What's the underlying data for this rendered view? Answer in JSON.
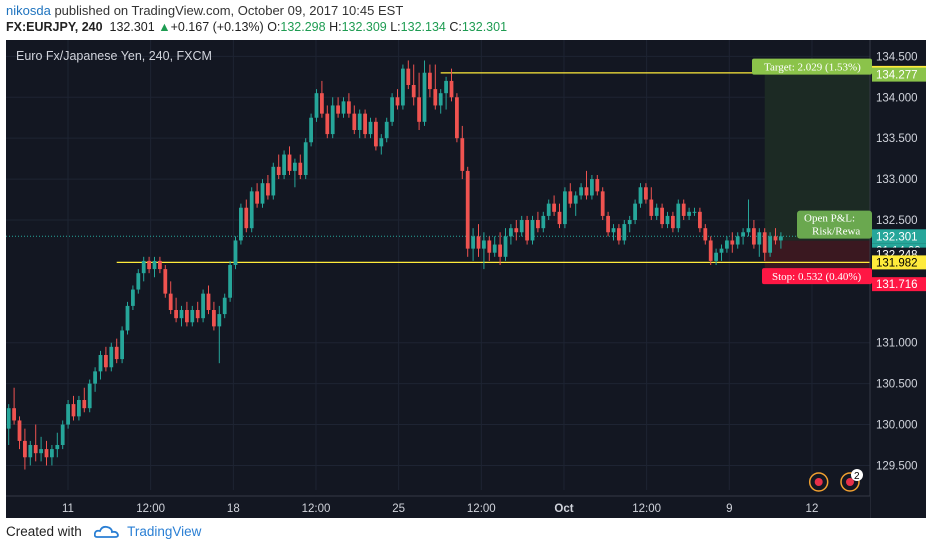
{
  "header": {
    "username": "nikosda",
    "published_text": "published on TradingView.com, October 09, 2017 10:45 EST"
  },
  "quote": {
    "symbol": "FX:EURJPY, 240",
    "last": "132.301",
    "change": "+0.167 (+0.13%)",
    "open_label": "O:",
    "open": "132.298",
    "high_label": "H:",
    "high": "132.309",
    "low_label": "L:",
    "low": "132.134",
    "close_label": "C:",
    "close": "132.301"
  },
  "footer": {
    "created_with": "Created with",
    "brand": "TradingView"
  },
  "colors": {
    "bg": "#131722",
    "up": "#26a69a",
    "down": "#ef5350",
    "line": "#ffeb3b",
    "target": "#8bc34a",
    "stop": "#ff1744"
  },
  "chart_data": {
    "type": "candlestick",
    "title": "Euro Fx/Japanese Yen, 240, FXCM",
    "ylim": [
      129.2,
      134.7
    ],
    "y_ticks": [
      "134.500",
      "134.000",
      "133.500",
      "133.000",
      "132.500",
      "131.000",
      "130.500",
      "130.000",
      "129.500"
    ],
    "x_ticks": [
      "11",
      "12:00",
      "18",
      "12:00",
      "25",
      "12:00",
      "Oct",
      "12:00",
      "9",
      "12"
    ],
    "n_bars": 160,
    "candles": [
      {
        "o": 129.95,
        "h": 130.25,
        "l": 129.75,
        "c": 130.2
      },
      {
        "o": 130.2,
        "h": 130.45,
        "l": 130.0,
        "c": 130.05
      },
      {
        "o": 130.05,
        "h": 130.1,
        "l": 129.7,
        "c": 129.8
      },
      {
        "o": 129.8,
        "h": 129.95,
        "l": 129.45,
        "c": 129.6
      },
      {
        "o": 129.6,
        "h": 129.8,
        "l": 129.5,
        "c": 129.75
      },
      {
        "o": 129.75,
        "h": 130.0,
        "l": 129.55,
        "c": 129.65
      },
      {
        "o": 129.65,
        "h": 129.85,
        "l": 129.55,
        "c": 129.7
      },
      {
        "o": 129.7,
        "h": 129.8,
        "l": 129.5,
        "c": 129.6
      },
      {
        "o": 129.6,
        "h": 129.75,
        "l": 129.5,
        "c": 129.7
      },
      {
        "o": 129.7,
        "h": 129.9,
        "l": 129.6,
        "c": 129.75
      },
      {
        "o": 129.75,
        "h": 130.05,
        "l": 129.7,
        "c": 130.0
      },
      {
        "o": 130.0,
        "h": 130.3,
        "l": 129.95,
        "c": 130.25
      },
      {
        "o": 130.25,
        "h": 130.35,
        "l": 130.05,
        "c": 130.1
      },
      {
        "o": 130.1,
        "h": 130.35,
        "l": 130.05,
        "c": 130.3
      },
      {
        "o": 130.3,
        "h": 130.45,
        "l": 130.15,
        "c": 130.2
      },
      {
        "o": 130.2,
        "h": 130.55,
        "l": 130.15,
        "c": 130.5
      },
      {
        "o": 130.5,
        "h": 130.7,
        "l": 130.4,
        "c": 130.65
      },
      {
        "o": 130.65,
        "h": 130.9,
        "l": 130.55,
        "c": 130.85
      },
      {
        "o": 130.85,
        "h": 130.95,
        "l": 130.65,
        "c": 130.7
      },
      {
        "o": 130.7,
        "h": 131.0,
        "l": 130.65,
        "c": 130.95
      },
      {
        "o": 130.95,
        "h": 131.05,
        "l": 130.75,
        "c": 130.8
      },
      {
        "o": 130.8,
        "h": 131.2,
        "l": 130.75,
        "c": 131.15
      },
      {
        "o": 131.15,
        "h": 131.5,
        "l": 131.1,
        "c": 131.45
      },
      {
        "o": 131.45,
        "h": 131.7,
        "l": 131.4,
        "c": 131.65
      },
      {
        "o": 131.65,
        "h": 131.9,
        "l": 131.6,
        "c": 131.85
      },
      {
        "o": 131.85,
        "h": 132.05,
        "l": 131.75,
        "c": 132.0
      },
      {
        "o": 132.0,
        "h": 132.05,
        "l": 131.85,
        "c": 131.9
      },
      {
        "o": 131.9,
        "h": 132.05,
        "l": 131.8,
        "c": 132.0
      },
      {
        "o": 132.0,
        "h": 132.05,
        "l": 131.85,
        "c": 131.9
      },
      {
        "o": 131.9,
        "h": 131.95,
        "l": 131.55,
        "c": 131.6
      },
      {
        "o": 131.6,
        "h": 131.75,
        "l": 131.35,
        "c": 131.4
      },
      {
        "o": 131.4,
        "h": 131.55,
        "l": 131.25,
        "c": 131.3
      },
      {
        "o": 131.3,
        "h": 131.45,
        "l": 131.2,
        "c": 131.4
      },
      {
        "o": 131.4,
        "h": 131.5,
        "l": 131.2,
        "c": 131.25
      },
      {
        "o": 131.25,
        "h": 131.45,
        "l": 131.2,
        "c": 131.4
      },
      {
        "o": 131.4,
        "h": 131.5,
        "l": 131.25,
        "c": 131.3
      },
      {
        "o": 131.3,
        "h": 131.65,
        "l": 131.25,
        "c": 131.6
      },
      {
        "o": 131.6,
        "h": 131.7,
        "l": 131.35,
        "c": 131.4
      },
      {
        "o": 131.4,
        "h": 131.5,
        "l": 131.15,
        "c": 131.2
      },
      {
        "o": 131.2,
        "h": 131.45,
        "l": 130.75,
        "c": 131.35
      },
      {
        "o": 131.35,
        "h": 131.6,
        "l": 131.3,
        "c": 131.55
      },
      {
        "o": 131.55,
        "h": 132.0,
        "l": 131.5,
        "c": 131.95
      },
      {
        "o": 131.95,
        "h": 132.3,
        "l": 131.9,
        "c": 132.25
      },
      {
        "o": 132.25,
        "h": 132.7,
        "l": 132.2,
        "c": 132.65
      },
      {
        "o": 132.65,
        "h": 132.75,
        "l": 132.35,
        "c": 132.4
      },
      {
        "o": 132.4,
        "h": 132.9,
        "l": 132.35,
        "c": 132.85
      },
      {
        "o": 132.85,
        "h": 132.95,
        "l": 132.65,
        "c": 132.7
      },
      {
        "o": 132.7,
        "h": 133.0,
        "l": 132.65,
        "c": 132.95
      },
      {
        "o": 132.95,
        "h": 133.05,
        "l": 132.75,
        "c": 132.8
      },
      {
        "o": 132.8,
        "h": 133.2,
        "l": 132.75,
        "c": 133.15
      },
      {
        "o": 133.15,
        "h": 133.3,
        "l": 133.0,
        "c": 133.05
      },
      {
        "o": 133.05,
        "h": 133.35,
        "l": 133.0,
        "c": 133.3
      },
      {
        "o": 133.3,
        "h": 133.4,
        "l": 133.05,
        "c": 133.1
      },
      {
        "o": 133.1,
        "h": 133.25,
        "l": 132.9,
        "c": 133.2
      },
      {
        "o": 133.2,
        "h": 133.3,
        "l": 133.0,
        "c": 133.05
      },
      {
        "o": 133.05,
        "h": 133.5,
        "l": 133.0,
        "c": 133.45
      },
      {
        "o": 133.45,
        "h": 133.8,
        "l": 133.4,
        "c": 133.75
      },
      {
        "o": 133.75,
        "h": 134.1,
        "l": 133.7,
        "c": 134.05
      },
      {
        "o": 134.05,
        "h": 134.2,
        "l": 133.75,
        "c": 133.8
      },
      {
        "o": 133.8,
        "h": 133.9,
        "l": 133.5,
        "c": 133.55
      },
      {
        "o": 133.55,
        "h": 134.0,
        "l": 133.5,
        "c": 133.9
      },
      {
        "o": 133.9,
        "h": 134.0,
        "l": 133.75,
        "c": 133.8
      },
      {
        "o": 133.8,
        "h": 134.0,
        "l": 133.75,
        "c": 133.95
      },
      {
        "o": 133.95,
        "h": 134.05,
        "l": 133.75,
        "c": 133.8
      },
      {
        "o": 133.8,
        "h": 133.9,
        "l": 133.55,
        "c": 133.6
      },
      {
        "o": 133.6,
        "h": 133.85,
        "l": 133.5,
        "c": 133.8
      },
      {
        "o": 133.8,
        "h": 133.85,
        "l": 133.5,
        "c": 133.55
      },
      {
        "o": 133.55,
        "h": 133.75,
        "l": 133.5,
        "c": 133.7
      },
      {
        "o": 133.7,
        "h": 133.75,
        "l": 133.35,
        "c": 133.4
      },
      {
        "o": 133.4,
        "h": 133.55,
        "l": 133.3,
        "c": 133.5
      },
      {
        "o": 133.5,
        "h": 133.75,
        "l": 133.45,
        "c": 133.7
      },
      {
        "o": 133.7,
        "h": 134.05,
        "l": 133.65,
        "c": 134.0
      },
      {
        "o": 134.0,
        "h": 134.1,
        "l": 133.85,
        "c": 133.9
      },
      {
        "o": 133.9,
        "h": 134.4,
        "l": 133.85,
        "c": 134.35
      },
      {
        "o": 134.35,
        "h": 134.45,
        "l": 134.1,
        "c": 134.15
      },
      {
        "o": 134.15,
        "h": 134.4,
        "l": 133.9,
        "c": 134.0
      },
      {
        "o": 134.0,
        "h": 134.3,
        "l": 133.6,
        "c": 133.7
      },
      {
        "o": 133.7,
        "h": 134.45,
        "l": 133.65,
        "c": 134.3
      },
      {
        "o": 134.3,
        "h": 134.4,
        "l": 134.0,
        "c": 134.1
      },
      {
        "o": 134.1,
        "h": 134.4,
        "l": 133.85,
        "c": 133.9
      },
      {
        "o": 133.9,
        "h": 134.1,
        "l": 133.8,
        "c": 134.05
      },
      {
        "o": 134.05,
        "h": 134.25,
        "l": 133.85,
        "c": 134.2
      },
      {
        "o": 134.2,
        "h": 134.35,
        "l": 133.95,
        "c": 134.0
      },
      {
        "o": 134.0,
        "h": 134.05,
        "l": 133.45,
        "c": 133.5
      },
      {
        "o": 133.5,
        "h": 133.65,
        "l": 133.0,
        "c": 133.1
      },
      {
        "o": 133.1,
        "h": 133.15,
        "l": 132.05,
        "c": 132.15
      },
      {
        "o": 132.15,
        "h": 132.4,
        "l": 132.0,
        "c": 132.3
      },
      {
        "o": 132.3,
        "h": 132.45,
        "l": 132.05,
        "c": 132.15
      },
      {
        "o": 132.15,
        "h": 132.35,
        "l": 131.9,
        "c": 132.25
      },
      {
        "o": 132.25,
        "h": 132.3,
        "l": 132.0,
        "c": 132.1
      },
      {
        "o": 132.1,
        "h": 132.3,
        "l": 132.05,
        "c": 132.2
      },
      {
        "o": 132.2,
        "h": 132.35,
        "l": 131.95,
        "c": 132.05
      },
      {
        "o": 132.05,
        "h": 132.4,
        "l": 132.0,
        "c": 132.3
      },
      {
        "o": 132.3,
        "h": 132.45,
        "l": 132.2,
        "c": 132.4
      },
      {
        "o": 132.4,
        "h": 132.5,
        "l": 132.25,
        "c": 132.35
      },
      {
        "o": 132.35,
        "h": 132.55,
        "l": 132.3,
        "c": 132.5
      },
      {
        "o": 132.5,
        "h": 132.55,
        "l": 132.2,
        "c": 132.25
      },
      {
        "o": 132.25,
        "h": 132.55,
        "l": 132.2,
        "c": 132.5
      },
      {
        "o": 132.5,
        "h": 132.6,
        "l": 132.35,
        "c": 132.4
      },
      {
        "o": 132.4,
        "h": 132.6,
        "l": 132.35,
        "c": 132.55
      },
      {
        "o": 132.55,
        "h": 132.75,
        "l": 132.5,
        "c": 132.7
      },
      {
        "o": 132.7,
        "h": 132.8,
        "l": 132.55,
        "c": 132.6
      },
      {
        "o": 132.6,
        "h": 132.7,
        "l": 132.4,
        "c": 132.45
      },
      {
        "o": 132.45,
        "h": 132.9,
        "l": 132.4,
        "c": 132.85
      },
      {
        "o": 132.85,
        "h": 132.95,
        "l": 132.65,
        "c": 132.7
      },
      {
        "o": 132.7,
        "h": 132.85,
        "l": 132.55,
        "c": 132.8
      },
      {
        "o": 132.8,
        "h": 132.95,
        "l": 132.75,
        "c": 132.9
      },
      {
        "o": 132.9,
        "h": 133.1,
        "l": 132.75,
        "c": 132.8
      },
      {
        "o": 132.8,
        "h": 133.05,
        "l": 132.75,
        "c": 133.0
      },
      {
        "o": 133.0,
        "h": 133.05,
        "l": 132.8,
        "c": 132.85
      },
      {
        "o": 132.85,
        "h": 132.9,
        "l": 132.5,
        "c": 132.55
      },
      {
        "o": 132.55,
        "h": 132.6,
        "l": 132.3,
        "c": 132.35
      },
      {
        "o": 132.35,
        "h": 132.45,
        "l": 132.25,
        "c": 132.4
      },
      {
        "o": 132.4,
        "h": 132.45,
        "l": 132.2,
        "c": 132.25
      },
      {
        "o": 132.25,
        "h": 132.5,
        "l": 132.2,
        "c": 132.45
      },
      {
        "o": 132.45,
        "h": 132.55,
        "l": 132.35,
        "c": 132.5
      },
      {
        "o": 132.5,
        "h": 132.75,
        "l": 132.45,
        "c": 132.7
      },
      {
        "o": 132.7,
        "h": 132.95,
        "l": 132.65,
        "c": 132.9
      },
      {
        "o": 132.9,
        "h": 132.95,
        "l": 132.7,
        "c": 132.75
      },
      {
        "o": 132.75,
        "h": 132.9,
        "l": 132.5,
        "c": 132.55
      },
      {
        "o": 132.55,
        "h": 132.7,
        "l": 132.5,
        "c": 132.65
      },
      {
        "o": 132.65,
        "h": 132.7,
        "l": 132.4,
        "c": 132.45
      },
      {
        "o": 132.45,
        "h": 132.6,
        "l": 132.4,
        "c": 132.55
      },
      {
        "o": 132.55,
        "h": 132.6,
        "l": 132.35,
        "c": 132.4
      },
      {
        "o": 132.4,
        "h": 132.75,
        "l": 132.35,
        "c": 132.7
      },
      {
        "o": 132.7,
        "h": 132.75,
        "l": 132.5,
        "c": 132.55
      },
      {
        "o": 132.55,
        "h": 132.65,
        "l": 132.5,
        "c": 132.6
      },
      {
        "o": 132.6,
        "h": 132.65,
        "l": 132.55,
        "c": 132.6
      },
      {
        "o": 132.6,
        "h": 132.65,
        "l": 132.35,
        "c": 132.4
      },
      {
        "o": 132.4,
        "h": 132.45,
        "l": 132.2,
        "c": 132.25
      },
      {
        "o": 132.25,
        "h": 132.3,
        "l": 131.95,
        "c": 132.0
      },
      {
        "o": 132.0,
        "h": 132.15,
        "l": 131.95,
        "c": 132.1
      },
      {
        "o": 132.1,
        "h": 132.2,
        "l": 132.0,
        "c": 132.15
      },
      {
        "o": 132.15,
        "h": 132.3,
        "l": 132.1,
        "c": 132.25
      },
      {
        "o": 132.25,
        "h": 132.35,
        "l": 132.1,
        "c": 132.2
      },
      {
        "o": 132.2,
        "h": 132.35,
        "l": 132.15,
        "c": 132.3
      },
      {
        "o": 132.3,
        "h": 132.4,
        "l": 132.2,
        "c": 132.35
      },
      {
        "o": 132.35,
        "h": 132.75,
        "l": 132.3,
        "c": 132.4
      },
      {
        "o": 132.4,
        "h": 132.5,
        "l": 132.15,
        "c": 132.2
      },
      {
        "o": 132.2,
        "h": 132.4,
        "l": 132.05,
        "c": 132.35
      },
      {
        "o": 132.35,
        "h": 132.4,
        "l": 132.0,
        "c": 132.1
      },
      {
        "o": 132.1,
        "h": 132.35,
        "l": 132.05,
        "c": 132.3
      },
      {
        "o": 132.3,
        "h": 132.4,
        "l": 132.2,
        "c": 132.25
      },
      {
        "o": 132.25,
        "h": 132.35,
        "l": 132.15,
        "c": 132.3
      }
    ],
    "horizontal_lines": [
      {
        "name": "resistance",
        "price": 134.298
      },
      {
        "name": "support",
        "price": 131.982
      }
    ],
    "position_tool": {
      "target_label": "Target: 2.029 (1.53%)",
      "stop_label": "Stop: 0.532 (0.40%)",
      "open_pl_label": "Open P&L:",
      "risk_label": "Risk/Rewa",
      "entry": 132.248,
      "target": 134.277,
      "stop": 131.716
    },
    "price_badges": [
      {
        "text": "134.298",
        "price": 134.298,
        "bg": "#ffeb3b",
        "fg": "#000000"
      },
      {
        "text": "134.277",
        "price": 134.277,
        "bg": "#8bc34a",
        "fg": "#ffffff"
      },
      {
        "text": "132.301",
        "price": 132.301,
        "bg": "#26a69a",
        "fg": "#ffffff"
      },
      {
        "text": "01:14:09",
        "price": 132.301,
        "bg": "#26a69a",
        "fg": "#ffffff",
        "offset": 1
      },
      {
        "text": "132.248",
        "price": 132.248,
        "bg": "#131722",
        "fg": "#ffffff",
        "offset": 1
      },
      {
        "text": "131.982",
        "price": 131.982,
        "bg": "#ffeb3b",
        "fg": "#000000"
      },
      {
        "text": "131.716",
        "price": 131.716,
        "bg": "#ff1744",
        "fg": "#ffffff"
      }
    ],
    "event_markers": [
      {
        "bar": 150,
        "label": ""
      },
      {
        "bar": 164,
        "label": "2"
      }
    ]
  }
}
